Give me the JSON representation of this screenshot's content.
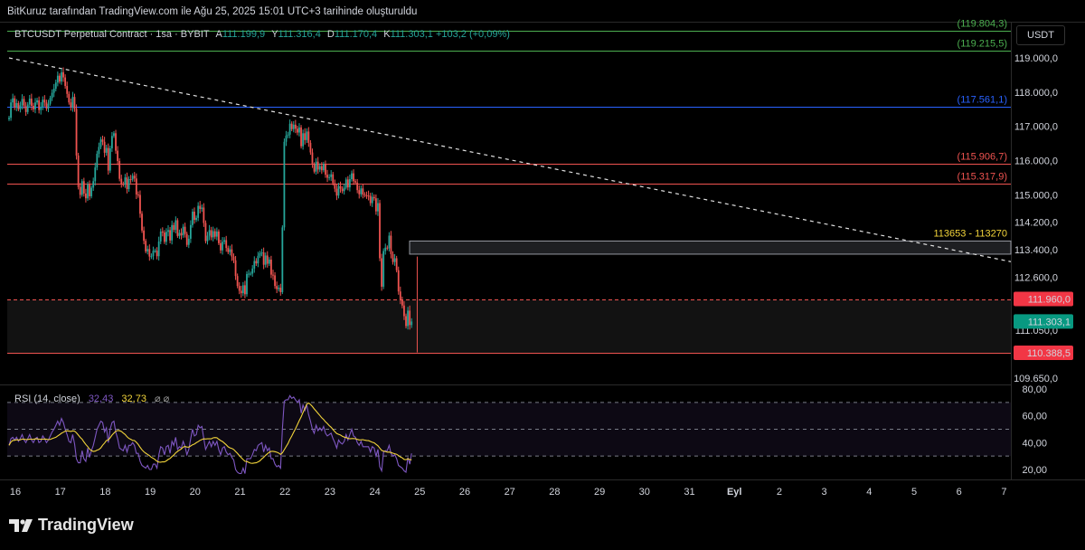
{
  "caption": "BitKuruz tarafından TradingView.com ile Ağu 25, 2025 15:01 UTC+3 tarihinde oluşturuldu",
  "legend": {
    "symbol": "BTCUSDT Perpetual Contract · 1sa · BYBIT",
    "a_label": "A",
    "a_value": "111.199,9",
    "y_label": "Y",
    "y_value": "111.316,4",
    "d_label": "D",
    "d_value": "111.170,4",
    "k_label": "K",
    "k_value": "111.303,1",
    "change": "+103,2 (+0,09%)"
  },
  "currency_button": "USDT",
  "brand": "TradingView",
  "rsi_legend": {
    "name": "RSI (14, close)",
    "rsi": "32,43",
    "ma": "32,73",
    "icons": "⌀ ⌀"
  },
  "colors": {
    "up": "#26a69a",
    "down": "#ef5350",
    "rsi": "#7e57c2",
    "rsi_ma": "#f2d43a",
    "background": "#000000"
  },
  "chart_data": {
    "type": "candlestick",
    "title": "BTCUSDT Perpetual Contract · 1sa · BYBIT",
    "price_ticks": [
      "119.000,0",
      "118.000,0",
      "117.000,0",
      "116.000,0",
      "115.000,0",
      "114.200,0",
      "113.400,0",
      "112.600,0",
      "111.050,0",
      "109.650,0"
    ],
    "price_tick_values": [
      119000,
      118000,
      117000,
      116000,
      115000,
      114200,
      113400,
      112600,
      111050,
      109650
    ],
    "date_ticks": [
      "16",
      "17",
      "18",
      "19",
      "20",
      "21",
      "22",
      "23",
      "24",
      "25",
      "26",
      "27",
      "28",
      "29",
      "30",
      "31",
      "Eyl",
      "2",
      "3",
      "4",
      "5",
      "6",
      "7"
    ],
    "levels": [
      {
        "label": "(119.804,3)",
        "value": 119804.3,
        "color": "#4caf50",
        "style": "solid"
      },
      {
        "label": "(119.215,5)",
        "value": 119215.5,
        "color": "#4caf50",
        "style": "solid"
      },
      {
        "label": "(117.561,1)",
        "value": 117561.1,
        "color": "#2962ff",
        "style": "solid"
      },
      {
        "label": "(115.906,7)",
        "value": 115906.7,
        "color": "#ef5350",
        "style": "solid"
      },
      {
        "label": "(115.317,9)",
        "value": 115317.9,
        "color": "#ef5350",
        "style": "solid"
      }
    ],
    "zone": {
      "label": "113653 - 113270",
      "top": 113653,
      "bottom": 113270
    },
    "support_dashed": {
      "label": "111.960,0",
      "value": 111960
    },
    "support_low": {
      "label": "110.388,5",
      "value": 110388.5
    },
    "current_price": {
      "label": "111.303,1",
      "value": 111303.1
    },
    "trendline": {
      "from": {
        "date": "Ağu 16",
        "price": 119000
      },
      "to": {
        "date": "Eyl 7",
        "price": 113050
      }
    },
    "price_series": {
      "date_start": "Ağu 16 00:00",
      "interval": "1h",
      "close": [
        117250,
        117700,
        117820,
        117550,
        117680,
        117500,
        117620,
        117800,
        117590,
        117420,
        117640,
        117810,
        117600,
        117500,
        117700,
        117760,
        117480,
        117560,
        117780,
        117700,
        117520,
        117660,
        117830,
        117980,
        118100,
        118280,
        118480,
        118310,
        118580,
        118430,
        118180,
        117950,
        117700,
        117560,
        117860,
        117510,
        116150,
        115230,
        115000,
        115400,
        115040,
        114900,
        115300,
        114960,
        115210,
        115400,
        115800,
        116200,
        116400,
        116620,
        116550,
        116230,
        116370,
        115710,
        116360,
        116720,
        116800,
        116290,
        115990,
        115470,
        115320,
        115300,
        115510,
        115170,
        115460,
        115450,
        115560,
        115480,
        115010,
        115000,
        114450,
        113960,
        113660,
        113350,
        113420,
        113200,
        113210,
        113370,
        113370,
        113210,
        113640,
        113930,
        113900,
        113630,
        113920,
        113970,
        113670,
        114120,
        113980,
        114260,
        113800,
        113890,
        113820,
        114070,
        113860,
        113540,
        113720,
        114120,
        114510,
        114270,
        114330,
        114680,
        114590,
        114630,
        114180,
        113650,
        113810,
        113970,
        113760,
        113940,
        113780,
        113930,
        113590,
        113380,
        113630,
        113680,
        113450,
        113330,
        113410,
        113200,
        113090,
        112630,
        112340,
        112200,
        112130,
        112360,
        112100,
        112690,
        112700,
        112700,
        112850,
        113070,
        113000,
        113220,
        113300,
        113320,
        112960,
        113230,
        112990,
        113110,
        112670,
        112650,
        112340,
        112250,
        112290,
        112160,
        114050,
        116550,
        116730,
        116760,
        117080,
        116920,
        117050,
        116930,
        116820,
        116970,
        116420,
        116800,
        116600,
        116850,
        116520,
        116240,
        115890,
        115680,
        115970,
        115740,
        115840,
        115720,
        115900,
        115590,
        115500,
        115520,
        115600,
        115340,
        115180,
        114980,
        115260,
        115180,
        115110,
        115210,
        115450,
        115220,
        115460,
        115630,
        115400,
        115360,
        115140,
        115020,
        115190,
        115010,
        114990,
        114980,
        114970,
        114760,
        114940,
        114900,
        114520,
        114760,
        113150,
        112320,
        113360,
        113460,
        113440,
        113810,
        113270,
        113040,
        113150,
        112800,
        112180,
        111940,
        111770,
        111460,
        111170,
        111620,
        111200,
        111303
      ]
    },
    "rsi": {
      "ticks": [
        "80,00",
        "60,00",
        "40,00",
        "20,00"
      ],
      "tick_values": [
        80,
        60,
        40,
        20
      ],
      "upper_band": 70,
      "middle": 50,
      "lower_band": 30,
      "values": [
        38,
        43,
        44,
        42,
        44,
        41,
        43,
        46,
        42,
        40,
        43,
        46,
        42,
        40,
        43,
        44,
        40,
        41,
        45,
        43,
        40,
        42,
        45,
        48,
        50,
        53,
        56,
        53,
        58,
        55,
        50,
        46,
        41,
        40,
        46,
        39,
        28,
        25,
        25,
        34,
        28,
        26,
        36,
        29,
        34,
        38,
        44,
        50,
        53,
        56,
        55,
        48,
        51,
        40,
        50,
        55,
        56,
        48,
        43,
        36,
        35,
        34,
        38,
        33,
        38,
        38,
        40,
        38,
        32,
        32,
        26,
        23,
        22,
        21,
        23,
        20,
        20,
        24,
        24,
        21,
        31,
        37,
        36,
        31,
        37,
        38,
        32,
        41,
        38,
        44,
        35,
        37,
        36,
        41,
        37,
        31,
        35,
        43,
        50,
        45,
        46,
        53,
        51,
        52,
        43,
        35,
        38,
        41,
        37,
        41,
        38,
        41,
        35,
        31,
        36,
        37,
        33,
        31,
        32,
        29,
        27,
        20,
        18,
        17,
        17,
        21,
        17,
        28,
        28,
        28,
        31,
        35,
        34,
        38,
        39,
        40,
        33,
        38,
        34,
        36,
        28,
        28,
        24,
        22,
        23,
        21,
        50,
        71,
        72,
        72,
        75,
        73,
        74,
        72,
        70,
        72,
        62,
        68,
        64,
        68,
        61,
        56,
        50,
        47,
        53,
        49,
        51,
        49,
        52,
        47,
        45,
        46,
        47,
        43,
        40,
        36,
        42,
        40,
        39,
        41,
        46,
        42,
        46,
        50,
        45,
        44,
        40,
        38,
        41,
        37,
        37,
        37,
        37,
        33,
        37,
        36,
        30,
        35,
        22,
        19,
        33,
        34,
        34,
        38,
        32,
        30,
        31,
        28,
        23,
        22,
        21,
        19,
        18,
        29,
        24,
        32
      ]
    }
  }
}
